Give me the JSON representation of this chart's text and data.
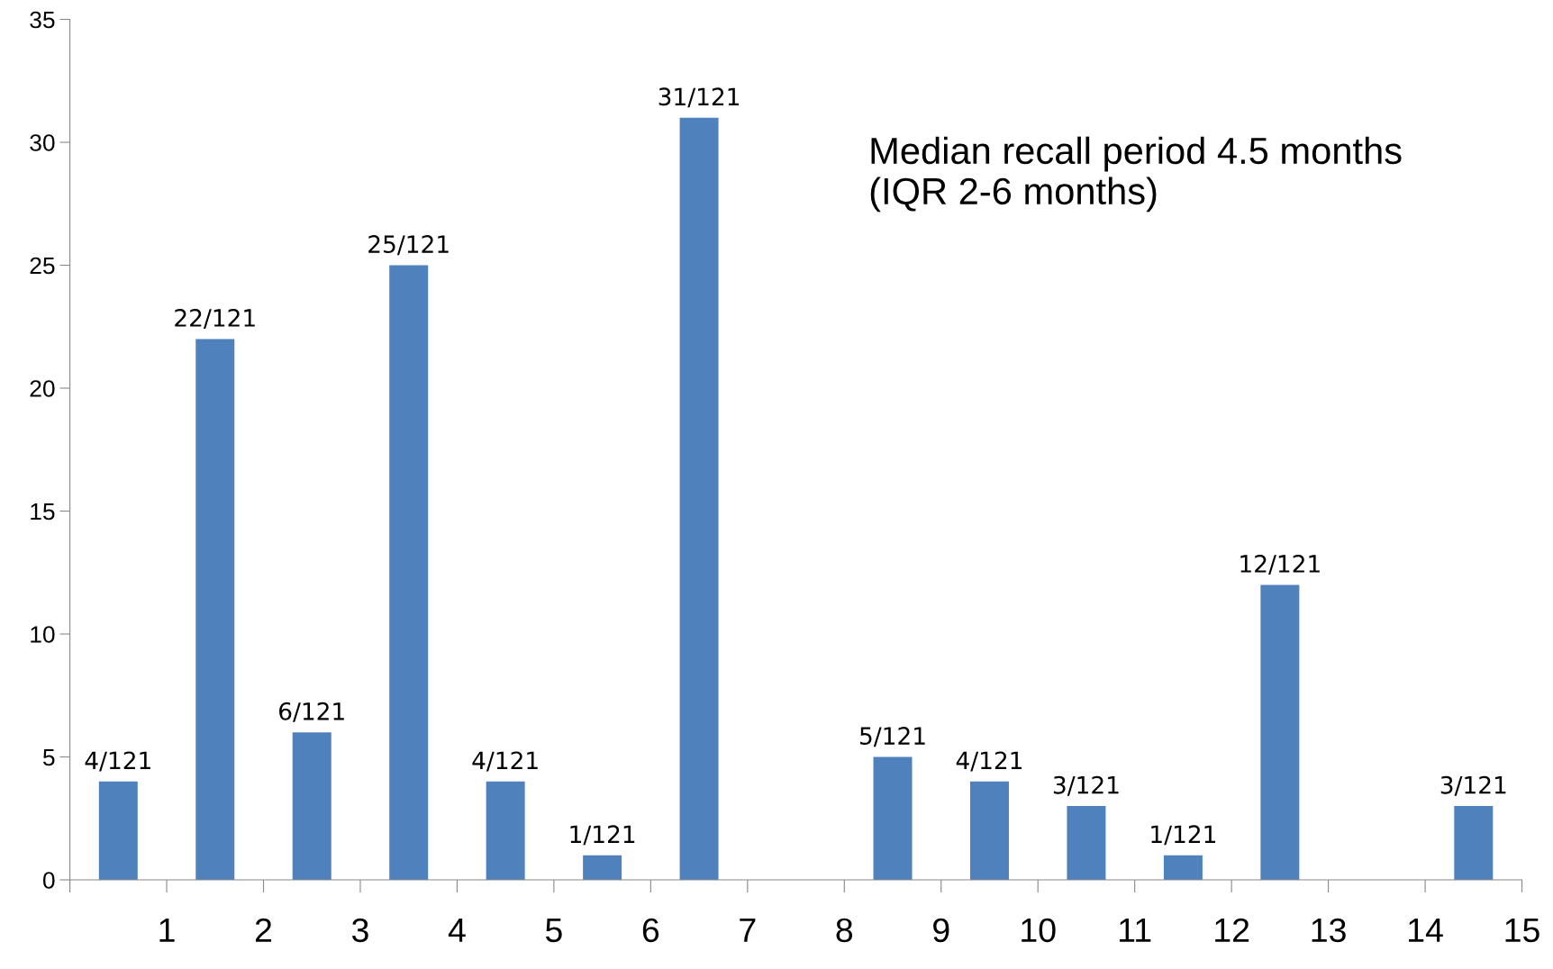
{
  "chart_data": {
    "type": "bar",
    "x": [
      0.5,
      1.5,
      2.5,
      3.5,
      4.5,
      5.5,
      6.5,
      7.5,
      8.5,
      9.5,
      10.5,
      11.5,
      12.5,
      13.5,
      14.5
    ],
    "values": [
      4,
      22,
      6,
      25,
      4,
      1,
      31,
      null,
      5,
      4,
      3,
      1,
      12,
      null,
      3
    ],
    "value_labels": [
      "4/121",
      "22/121",
      "6/121",
      "25/121",
      "4/121",
      "1/121",
      "31/121",
      null,
      "5/121",
      "4/121",
      "3/121",
      "1/121",
      "12/121",
      null,
      "3/121"
    ],
    "color": "#4f81bd",
    "xlim": [
      0,
      15
    ],
    "xticks": [
      {
        "value": 0,
        "label": null
      },
      1,
      2,
      3,
      4,
      5,
      6,
      7,
      8,
      9,
      10,
      11,
      12,
      13,
      14,
      15
    ],
    "ylim": [
      0,
      35
    ],
    "yticks": [
      0,
      5,
      10,
      15,
      20,
      25,
      30,
      35
    ],
    "grid": false,
    "legend": false,
    "annotations": [
      "Median recall period 4.5 months\n(IQR 2-6 months)"
    ]
  }
}
